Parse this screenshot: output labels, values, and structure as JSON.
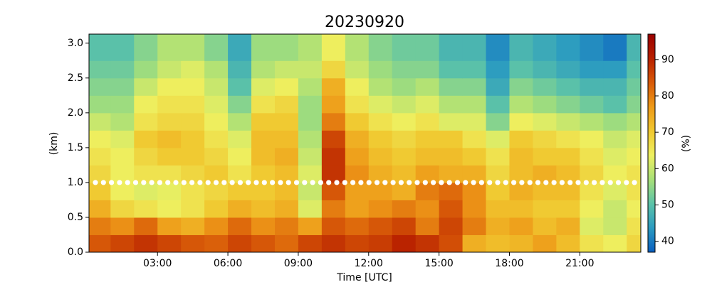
{
  "chart_data": {
    "type": "heatmap",
    "title": "20230920",
    "xlabel": "Time [UTC]",
    "ylabel": "(km)",
    "colorbar_label": "(%)",
    "xlim": [
      0.08,
      23.6
    ],
    "ylim": [
      0,
      3.13
    ],
    "xticks": [
      {
        "value": 3,
        "label": "03:00"
      },
      {
        "value": 6,
        "label": "06:00"
      },
      {
        "value": 9,
        "label": "09:00"
      },
      {
        "value": 12,
        "label": "12:00"
      },
      {
        "value": 15,
        "label": "15:00"
      },
      {
        "value": 18,
        "label": "18:00"
      },
      {
        "value": 21,
        "label": "21:00"
      }
    ],
    "yticks": [
      {
        "value": 0,
        "label": "0.0"
      },
      {
        "value": 0.5,
        "label": "0.5"
      },
      {
        "value": 1,
        "label": "1.0"
      },
      {
        "value": 1.5,
        "label": "1.5"
      },
      {
        "value": 2,
        "label": "2.0"
      },
      {
        "value": 2.5,
        "label": "2.5"
      },
      {
        "value": 3,
        "label": "3.0"
      }
    ],
    "xbins": [
      0.08,
      1,
      2,
      3,
      4,
      5,
      6,
      7,
      8,
      9,
      10,
      11,
      12,
      13,
      14,
      15,
      16,
      17,
      18,
      19,
      20,
      21,
      22,
      23,
      23.6
    ],
    "ybins": [
      0,
      0.25,
      0.5,
      0.75,
      1,
      1.25,
      1.5,
      1.75,
      2,
      2.25,
      2.5,
      2.75,
      3.13
    ],
    "z": [
      [
        84,
        86,
        88,
        86,
        84,
        83,
        86,
        84,
        82,
        86,
        88,
        86,
        87,
        90,
        88,
        85,
        74,
        72,
        73,
        76,
        72,
        66,
        64,
        68
      ],
      [
        80,
        78,
        82,
        76,
        74,
        78,
        82,
        78,
        80,
        76,
        84,
        82,
        84,
        86,
        80,
        86,
        80,
        74,
        76,
        72,
        74,
        62,
        60,
        66
      ],
      [
        74,
        68,
        66,
        64,
        66,
        70,
        74,
        72,
        74,
        62,
        80,
        76,
        78,
        80,
        78,
        84,
        78,
        72,
        72,
        70,
        70,
        64,
        60,
        64
      ],
      [
        70,
        64,
        62,
        63,
        66,
        68,
        70,
        70,
        72,
        60,
        84,
        76,
        76,
        74,
        80,
        82,
        78,
        70,
        74,
        72,
        72,
        66,
        62,
        66
      ],
      [
        68,
        64,
        66,
        66,
        68,
        70,
        66,
        70,
        72,
        62,
        88,
        78,
        74,
        72,
        76,
        74,
        74,
        68,
        72,
        74,
        72,
        68,
        64,
        66
      ],
      [
        66,
        64,
        68,
        70,
        70,
        68,
        64,
        72,
        74,
        60,
        88,
        76,
        72,
        70,
        72,
        72,
        70,
        66,
        72,
        70,
        70,
        66,
        62,
        64
      ],
      [
        64,
        62,
        70,
        72,
        70,
        66,
        62,
        72,
        72,
        58,
        86,
        74,
        70,
        68,
        70,
        70,
        66,
        62,
        70,
        68,
        66,
        64,
        60,
        62
      ],
      [
        60,
        58,
        66,
        68,
        68,
        64,
        58,
        70,
        70,
        56,
        80,
        70,
        66,
        64,
        66,
        62,
        62,
        54,
        64,
        62,
        60,
        58,
        56,
        58
      ],
      [
        56,
        56,
        64,
        66,
        66,
        62,
        54,
        66,
        68,
        56,
        76,
        66,
        62,
        60,
        62,
        58,
        58,
        50,
        58,
        56,
        54,
        52,
        50,
        54
      ],
      [
        54,
        54,
        60,
        64,
        64,
        60,
        50,
        62,
        64,
        58,
        74,
        64,
        58,
        56,
        58,
        54,
        54,
        46,
        54,
        52,
        50,
        48,
        48,
        52
      ],
      [
        52,
        52,
        56,
        60,
        62,
        58,
        48,
        58,
        60,
        60,
        68,
        60,
        56,
        54,
        54,
        50,
        50,
        44,
        50,
        48,
        46,
        44,
        44,
        50
      ],
      [
        50,
        50,
        54,
        58,
        58,
        54,
        46,
        56,
        56,
        58,
        64,
        58,
        54,
        52,
        52,
        48,
        48,
        42,
        48,
        46,
        44,
        42,
        40,
        48
      ]
    ],
    "clim": [
      37,
      97
    ],
    "cticks": [
      40,
      50,
      60,
      70,
      80,
      90
    ],
    "colormap": [
      "#0a5fc0",
      "#2b9bc0",
      "#5cc3a8",
      "#a8e078",
      "#eef060",
      "#f0c830",
      "#ee9a18",
      "#d85a08",
      "#b82000",
      "#9a0000"
    ],
    "marker_line": {
      "y": 1,
      "color": "#ffffff"
    }
  }
}
